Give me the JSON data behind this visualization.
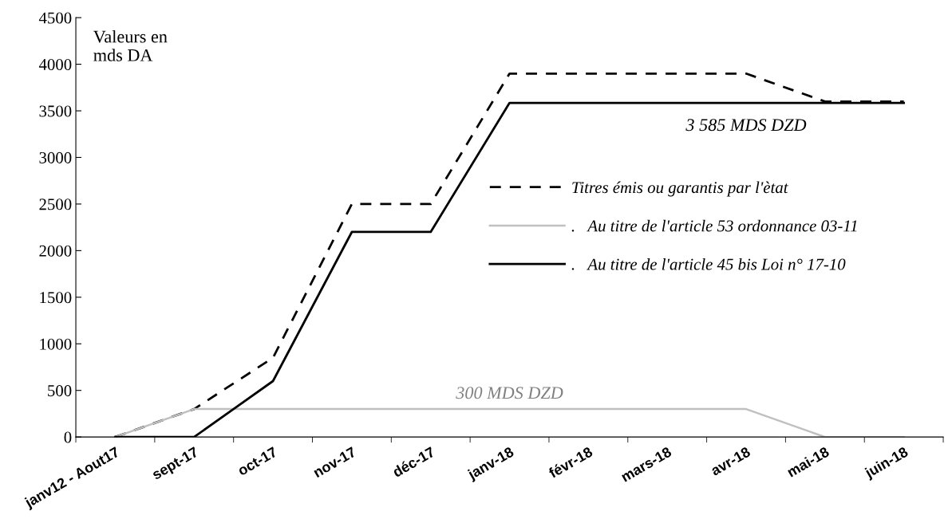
{
  "chart_data": {
    "type": "line",
    "ylabel": "Valeurs en\nmds DA",
    "categories": [
      "janv12 - Aout17",
      "sept-17",
      "oct-17",
      "nov-17",
      "déc-17",
      "janv-18",
      "févr-18",
      "mars-18",
      "avr-18",
      "mai-18",
      "juin-18"
    ],
    "series": [
      {
        "name": "Titres émis ou garantis par l'ètat",
        "color": "#000000",
        "line_style": "dashed",
        "values": [
          0,
          300,
          850,
          2500,
          2500,
          3900,
          3900,
          3900,
          3900,
          3600,
          3600
        ]
      },
      {
        "name": ".   Au titre de l'article 53 ordonnance 03-11",
        "color": "#c0c0c0",
        "line_style": "solid",
        "values": [
          0,
          300,
          300,
          300,
          300,
          300,
          300,
          300,
          300,
          0,
          0
        ]
      },
      {
        "name": ".   Au titre de l'article 45 bis Loi n° 17-10",
        "color": "#000000",
        "line_style": "solid",
        "values": [
          0,
          0,
          600,
          2200,
          2200,
          3585,
          3585,
          3585,
          3585,
          3585,
          3585
        ]
      }
    ],
    "ylim": [
      0,
      4500
    ],
    "yticks": [
      0,
      500,
      1000,
      1500,
      2000,
      2500,
      3000,
      3500,
      4000,
      4500
    ],
    "grid": false,
    "legend": "right",
    "marker": "none",
    "annotations": [
      {
        "text": "3 585 MDS DZD",
        "x": "avr-18",
        "y": 3585
      },
      {
        "text": "300 MDS DZD",
        "x": "janv-18",
        "y": 300
      }
    ]
  }
}
